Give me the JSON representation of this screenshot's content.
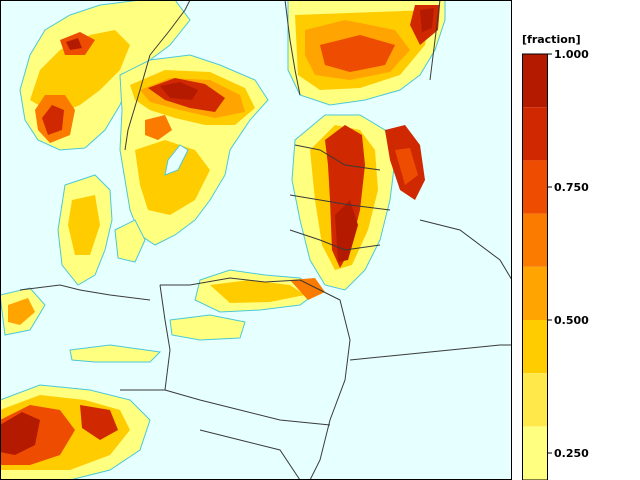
{
  "legend": {
    "title": "[fraction]",
    "ticks": [
      {
        "value": 1.0,
        "label": "1.000"
      },
      {
        "value": 0.75,
        "label": "0.750"
      },
      {
        "value": 0.5,
        "label": "0.500"
      },
      {
        "value": 0.25,
        "label": "0.250"
      }
    ],
    "bins": [
      {
        "from": 0.9,
        "to": 1.0,
        "color": "#b41a00"
      },
      {
        "from": 0.8,
        "to": 0.9,
        "color": "#d02800"
      },
      {
        "from": 0.7,
        "to": 0.8,
        "color": "#ee4c00"
      },
      {
        "from": 0.6,
        "to": 0.7,
        "color": "#fb7a00"
      },
      {
        "from": 0.5,
        "to": 0.6,
        "color": "#ffa400"
      },
      {
        "from": 0.4,
        "to": 0.5,
        "color": "#ffcc00"
      },
      {
        "from": 0.3,
        "to": 0.4,
        "color": "#ffe84a"
      },
      {
        "from": 0.2,
        "to": 0.3,
        "color": "#ffff80"
      }
    ]
  },
  "colors": {
    "background": "#e6ffff",
    "contour": "#4cc8d8",
    "border": "#3a3a3a"
  }
}
